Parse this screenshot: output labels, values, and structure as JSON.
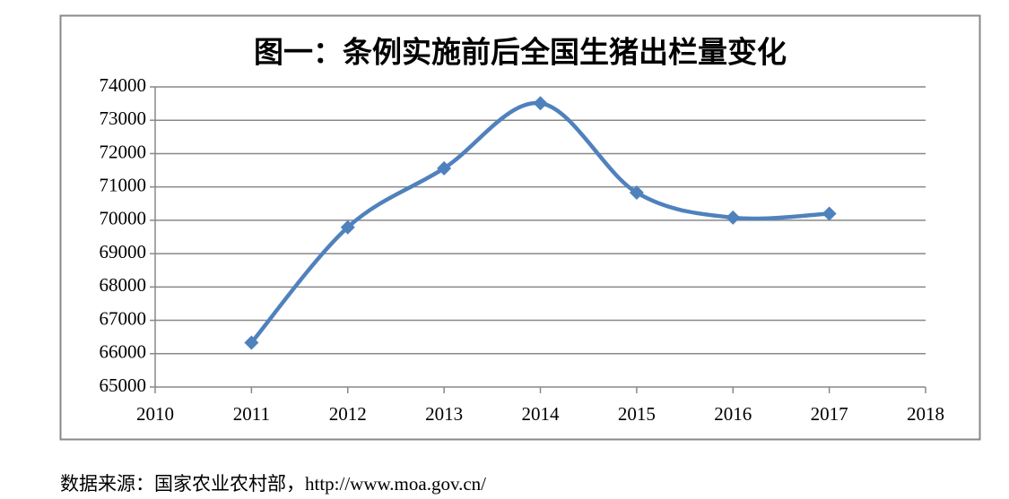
{
  "chart_data": {
    "type": "line",
    "title": "图一：条例实施前后全国生猪出栏量变化",
    "x": [
      2011,
      2012,
      2013,
      2014,
      2015,
      2016,
      2017
    ],
    "series": [
      {
        "name": "生猪出栏量",
        "color": "#4f81bd",
        "values": [
          66330,
          69790,
          71560,
          73510,
          70830,
          70080,
          70200
        ]
      }
    ],
    "xlim": [
      2010,
      2018
    ],
    "xticks": [
      2010,
      2011,
      2012,
      2013,
      2014,
      2015,
      2016,
      2017,
      2018
    ],
    "ylim": [
      65000,
      74000
    ],
    "yticks": [
      65000,
      66000,
      67000,
      68000,
      69000,
      70000,
      71000,
      72000,
      73000,
      74000
    ],
    "grid": true,
    "smooth": true
  },
  "source": "数据来源：国家农业农村部，http://www.moa.gov.cn/"
}
